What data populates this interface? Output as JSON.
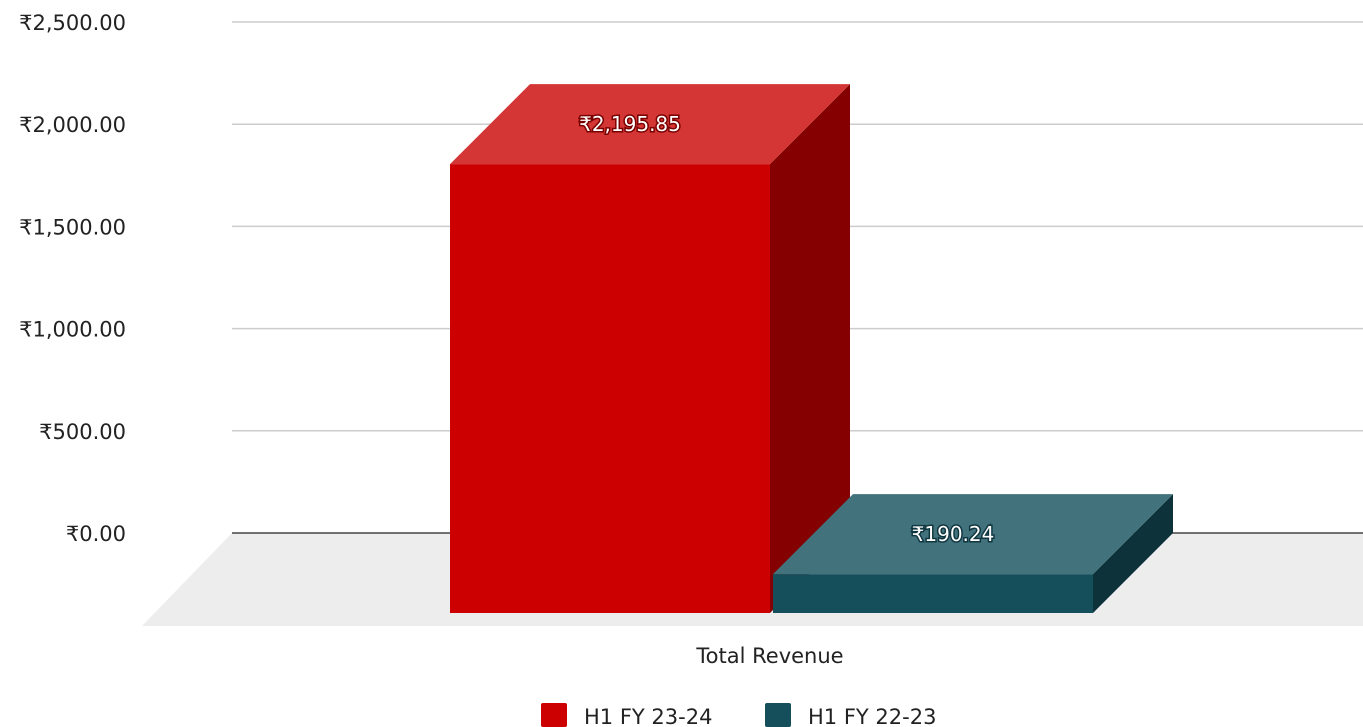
{
  "chart_data": {
    "type": "bar",
    "categories": [
      "Total Revenue"
    ],
    "series": [
      {
        "name": "H1 FY 23-24",
        "values": [
          2195.85
        ],
        "label": "₹2,195.85",
        "color": "#cc0000",
        "side_color": "#850000",
        "top_color": "#d43535"
      },
      {
        "name": "H1 FY 22-23",
        "values": [
          190.24
        ],
        "label": "₹190.24",
        "color": "#164f5c",
        "side_color": "#0e323a",
        "top_color": "#42737d"
      }
    ],
    "ylim": [
      0,
      2500
    ],
    "yticks": [
      {
        "value": 2500,
        "label": "₹2,500.00"
      },
      {
        "value": 2000,
        "label": "₹2,000.00"
      },
      {
        "value": 1500,
        "label": "₹1,500.00"
      },
      {
        "value": 1000,
        "label": "₹1,000.00"
      },
      {
        "value": 500,
        "label": "₹500.00"
      },
      {
        "value": 0,
        "label": "₹0.00"
      }
    ],
    "grid": true,
    "legend": "bottom",
    "style": "3d"
  }
}
